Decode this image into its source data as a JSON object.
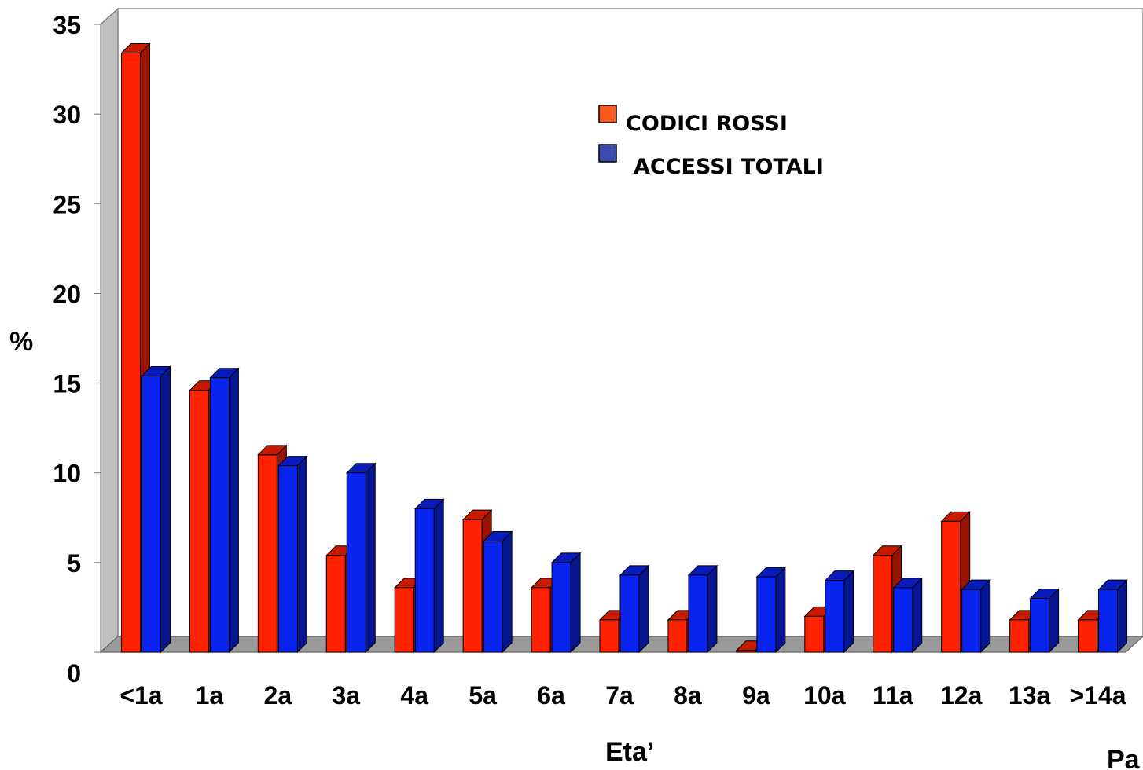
{
  "chart_data": {
    "type": "bar",
    "style": "3d",
    "categories": [
      "<1a",
      "1a",
      "2a",
      "3a",
      "4a",
      "5a",
      "6a",
      "7a",
      "8a",
      "9a",
      "10a",
      "11a",
      "12a",
      "13a",
      ">14a"
    ],
    "series": [
      {
        "name": "CODICI ROSSI",
        "color": "#ff2200",
        "legend_color": "#ff5a1e",
        "values": [
          33.4,
          14.6,
          11.0,
          5.4,
          3.6,
          7.4,
          3.6,
          1.8,
          1.8,
          0.1,
          2.0,
          5.4,
          7.3,
          1.8,
          1.8
        ]
      },
      {
        "name": "ACCESSI TOTALI",
        "color": "#0a24f0",
        "legend_color": "#3d4ab0",
        "values": [
          15.4,
          15.3,
          10.4,
          10.0,
          8.0,
          6.2,
          5.0,
          4.3,
          4.3,
          4.2,
          4.0,
          3.6,
          3.5,
          3.0,
          3.5
        ]
      }
    ],
    "ylim": [
      0,
      35
    ],
    "yticks": [
      0,
      5,
      10,
      15,
      20,
      25,
      30,
      35
    ],
    "ylabel": "%",
    "xlabel": "Eta’",
    "corner_text": "Pa",
    "legend_position": "top-center",
    "grid": false
  }
}
